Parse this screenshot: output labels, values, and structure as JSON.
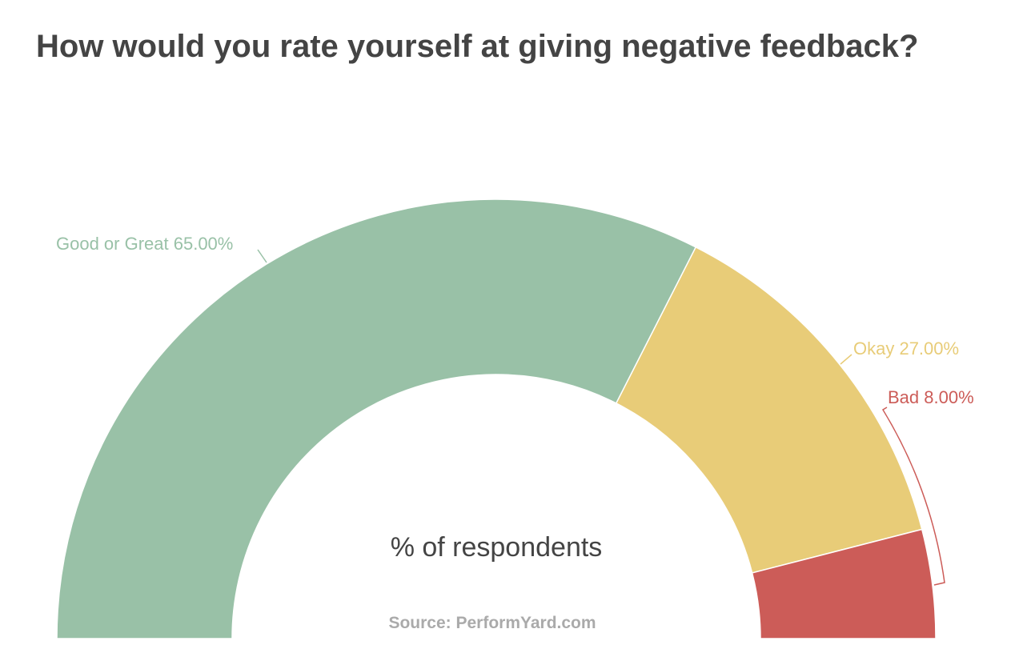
{
  "chart_data": {
    "type": "pie",
    "variant": "semi-donut",
    "title": "How would you rate yourself at giving negative feedback?",
    "center_label": "% of respondents",
    "source": "Source: PerformYard.com",
    "slices": [
      {
        "name": "Good or Great",
        "value": 65.0,
        "label": "Good or Great 65.00%",
        "color": "#99c1a7"
      },
      {
        "name": "Okay",
        "value": 27.0,
        "label": "Okay 27.00%",
        "color": "#e8cc78"
      },
      {
        "name": "Bad",
        "value": 8.0,
        "label": "Bad 8.00%",
        "color": "#cc5c58"
      }
    ]
  }
}
